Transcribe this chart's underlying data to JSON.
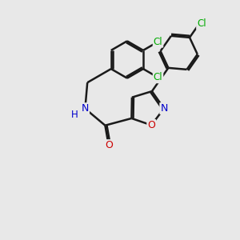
{
  "bg_color": "#e8e8e8",
  "bond_color": "#1a1a1a",
  "bond_width": 1.8,
  "dbo": 0.07,
  "atom_colors": {
    "N": "#0000cc",
    "O": "#cc0000",
    "Cl": "#00aa00",
    "H": "#0000cc"
  },
  "font_size": 8.5
}
